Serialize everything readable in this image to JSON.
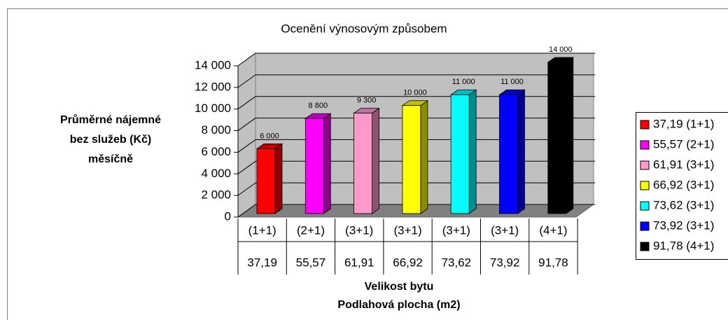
{
  "chart_data": {
    "type": "bar3d",
    "title": "Ocenění výnosovým způsobem",
    "categories": [
      "(1+1)",
      "(2+1)",
      "(3+1)",
      "(3+1)",
      "(3+1)",
      "(3+1)",
      "(4+1)"
    ],
    "category_areas": [
      "37,19",
      "55,57",
      "61,91",
      "66,92",
      "73,62",
      "73,92",
      "91,78"
    ],
    "values": [
      6000,
      8800,
      9300,
      10000,
      11000,
      11000,
      14000
    ],
    "value_labels": [
      "6 000",
      "8 800",
      "9 300",
      "10 000",
      "11 000",
      "11 000",
      "14 000"
    ],
    "colors": [
      "#ff0000",
      "#ff00ff",
      "#ff99cc",
      "#ffff00",
      "#00ffff",
      "#0000ff",
      "#000000"
    ],
    "legend": [
      "37,19 (1+1)",
      "55,57 (2+1)",
      "61,91 (3+1)",
      "66,92 (3+1)",
      "73,62 (3+1)",
      "73,92 (3+1)",
      "91,78 (4+1)"
    ],
    "x_label": [
      "Velikost bytu",
      "Podlahová plocha (m2)"
    ],
    "y_label": [
      "Průměrné nájemné",
      "bez služeb (Kč)",
      "měsíčně"
    ],
    "ylim": [
      0,
      14000
    ],
    "yticks": [
      0,
      {
        "value": 2000,
        "label": "2 000"
      },
      {
        "value": 4000,
        "label": "4 000"
      },
      {
        "value": 6000,
        "label": "6 000"
      },
      {
        "value": 8000,
        "label": "8 000"
      },
      {
        "value": 10000,
        "label": "10 000"
      },
      {
        "value": 12000,
        "label": "12 000"
      },
      {
        "value": 14000,
        "label": "14 000"
      }
    ],
    "grid": true
  }
}
